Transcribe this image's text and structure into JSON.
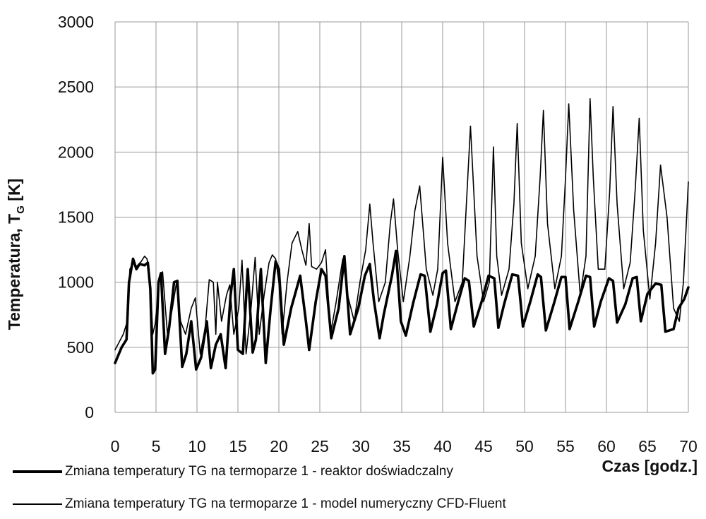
{
  "chart_data": {
    "type": "line",
    "xlabel": "Czas [godz.]",
    "ylabel_main": "Temperatura, T",
    "ylabel_sub": "G",
    "ylabel_unit": " [K]",
    "xlim": [
      0,
      70
    ],
    "ylim": [
      0,
      3000
    ],
    "xticks": [
      0,
      5,
      10,
      15,
      20,
      25,
      30,
      35,
      40,
      45,
      50,
      55,
      60,
      65,
      70
    ],
    "yticks": [
      0,
      500,
      1000,
      1500,
      2000,
      2500,
      3000
    ],
    "grid": true,
    "legend_position": "bottom",
    "series": [
      {
        "name": "Zmiana temperatury TG na termoparze 1 - reaktor doświadczalny",
        "style": "thick",
        "color": "#000000",
        "x": [
          0,
          0.8,
          1.4,
          1.7,
          2.2,
          2.6,
          3.0,
          3.6,
          4.0,
          4.3,
          4.6,
          4.9,
          5.3,
          5.6,
          6.1,
          6.6,
          7.2,
          7.6,
          8.2,
          8.7,
          9.3,
          9.9,
          10.5,
          11.2,
          11.7,
          12.3,
          12.9,
          13.5,
          14.1,
          14.5,
          15.0,
          15.6,
          16.2,
          16.8,
          17.2,
          17.8,
          18.4,
          19.0,
          19.6,
          20.0,
          20.6,
          21.5,
          22.6,
          23.3,
          23.7,
          24.5,
          25.2,
          25.7,
          26.4,
          27.3,
          28.0,
          28.7,
          29.7,
          30.5,
          31.1,
          31.6,
          32.3,
          32.8,
          33.8,
          34.3,
          34.9,
          35.5,
          36.4,
          37.3,
          37.8,
          38.5,
          39.3,
          40.0,
          40.4,
          41.0,
          41.9,
          42.7,
          43.2,
          43.8,
          44.8,
          45.6,
          46.3,
          46.8,
          47.5,
          48.5,
          49.2,
          49.8,
          50.7,
          51.6,
          52.0,
          52.6,
          53.6,
          54.5,
          55.0,
          55.5,
          56.6,
          57.5,
          58.0,
          58.5,
          59.3,
          60.3,
          60.8,
          61.3,
          62.3,
          63.2,
          63.7,
          64.2,
          65.0,
          66.0,
          66.7,
          67.2,
          68.2,
          68.8,
          69.5,
          70.0
        ],
        "y": [
          380,
          500,
          560,
          1000,
          1180,
          1100,
          1140,
          1130,
          1150,
          950,
          300,
          330,
          1000,
          1070,
          450,
          650,
          1000,
          1010,
          350,
          450,
          700,
          330,
          420,
          700,
          340,
          520,
          600,
          340,
          900,
          1100,
          480,
          450,
          1100,
          460,
          560,
          1100,
          380,
          800,
          1160,
          1100,
          520,
          800,
          1050,
          700,
          480,
          850,
          1100,
          1050,
          570,
          800,
          1200,
          600,
          800,
          1050,
          1140,
          860,
          570,
          750,
          1050,
          1240,
          700,
          590,
          840,
          1060,
          1050,
          620,
          830,
          1070,
          1090,
          640,
          850,
          1030,
          1010,
          660,
          860,
          1050,
          1030,
          650,
          830,
          1060,
          1050,
          660,
          850,
          1060,
          1040,
          630,
          840,
          1040,
          1040,
          640,
          860,
          1050,
          1040,
          660,
          850,
          1030,
          1010,
          690,
          830,
          1030,
          1040,
          700,
          910,
          990,
          980,
          620,
          640,
          800,
          870,
          960
        ]
      },
      {
        "name": "Zmiana temperatury TG na termoparze 1 - model numeryczny CFD-Fluent",
        "style": "thin",
        "color": "#000000",
        "x": [
          0,
          1.0,
          1.5,
          1.8,
          2.2,
          2.6,
          3.2,
          3.6,
          3.9,
          4.3,
          4.6,
          4.9,
          5.4,
          5.8,
          6.4,
          7.0,
          7.5,
          8.0,
          8.6,
          9.3,
          9.8,
          10.4,
          11.0,
          11.5,
          12.0,
          12.3,
          12.5,
          13.0,
          13.6,
          14.0,
          14.5,
          15.1,
          15.5,
          16.0,
          16.6,
          17.1,
          17.6,
          18.2,
          18.8,
          19.2,
          19.6,
          20.0,
          20.4,
          21.0,
          21.6,
          22.3,
          22.8,
          23.3,
          23.7,
          24.0,
          24.6,
          25.2,
          25.7,
          26.3,
          27.0,
          27.8,
          28.4,
          29.2,
          29.9,
          30.6,
          31.1,
          31.5,
          32.2,
          33.0,
          33.6,
          34.0,
          34.5,
          35.2,
          36.0,
          36.6,
          37.2,
          38.0,
          38.8,
          39.4,
          40.0,
          40.6,
          41.5,
          42.4,
          42.9,
          43.4,
          44.2,
          45.0,
          45.7,
          46.2,
          46.6,
          47.2,
          48.1,
          48.7,
          49.1,
          49.6,
          50.4,
          51.3,
          51.9,
          52.3,
          52.8,
          53.7,
          54.5,
          55.0,
          55.4,
          56.0,
          56.8,
          57.5,
          58.0,
          58.4,
          59.0,
          59.8,
          60.4,
          60.8,
          61.3,
          62.1,
          62.9,
          63.5,
          64.0,
          64.5,
          65.3,
          66.0,
          66.6,
          67.4,
          68.2,
          68.9,
          69.4,
          70.0
        ],
        "y": [
          480,
          600,
          700,
          1100,
          1150,
          1120,
          1160,
          1200,
          1180,
          1000,
          600,
          680,
          1000,
          1080,
          600,
          800,
          1000,
          700,
          600,
          800,
          880,
          450,
          650,
          1020,
          1000,
          600,
          1000,
          700,
          900,
          980,
          600,
          800,
          1170,
          450,
          800,
          1190,
          600,
          900,
          1150,
          1210,
          1180,
          1000,
          600,
          1000,
          1300,
          1390,
          1250,
          1130,
          1450,
          1120,
          1100,
          1150,
          1250,
          600,
          850,
          1180,
          900,
          700,
          1000,
          1250,
          1600,
          1300,
          850,
          1000,
          1450,
          1640,
          1250,
          850,
          1200,
          1550,
          1740,
          1100,
          900,
          1100,
          1960,
          1300,
          850,
          1000,
          1600,
          2200,
          1200,
          850,
          1000,
          2040,
          1200,
          900,
          1100,
          1600,
          2220,
          1300,
          950,
          1200,
          1800,
          2320,
          1450,
          950,
          1200,
          1800,
          2370,
          1550,
          900,
          1200,
          2410,
          1800,
          1100,
          1100,
          1700,
          2350,
          1600,
          950,
          1150,
          1700,
          2260,
          1400,
          870,
          1300,
          1900,
          1500,
          800,
          700,
          1000,
          1770
        ]
      }
    ]
  }
}
